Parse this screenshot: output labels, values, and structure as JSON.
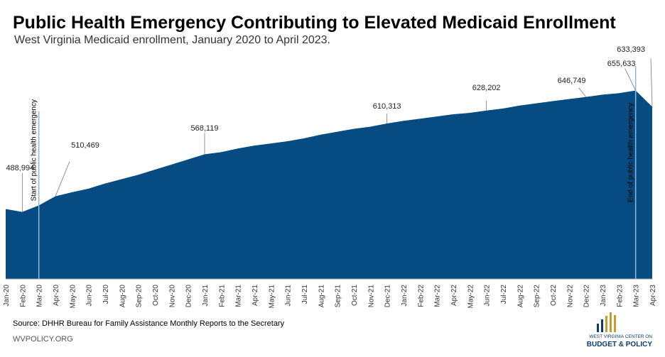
{
  "chart_data": {
    "type": "area",
    "title": "Public Health Emergency Contributing to Elevated Medicaid Enrollment",
    "subtitle": "West Virginia Medicaid enrollment, January 2020 to April 2023.",
    "categories": [
      "Jan-20",
      "Feb-20",
      "Mar-20",
      "Apr-20",
      "May-20",
      "Jun-20",
      "Jul-20",
      "Aug-20",
      "Sep-20",
      "Oct-20",
      "Nov-20",
      "Dec-20",
      "Jan-21",
      "Feb-21",
      "Mar-21",
      "Apr-21",
      "May-21",
      "Jun-21",
      "Jul-21",
      "Aug-21",
      "Sep-21",
      "Oct-21",
      "Nov-21",
      "Dec-21",
      "Jan-22",
      "Feb-22",
      "Mar-22",
      "Apr-22",
      "May-22",
      "Jun-22",
      "Jul-22",
      "Aug-22",
      "Sep-22",
      "Oct-22",
      "Nov-22",
      "Dec-22",
      "Jan-23",
      "Feb-23",
      "Mar-23",
      "Apr-23"
    ],
    "values": [
      493000,
      488994,
      498000,
      510469,
      516000,
      521000,
      528000,
      534000,
      540000,
      547000,
      554000,
      561000,
      568119,
      571000,
      576000,
      580000,
      583000,
      586000,
      590000,
      595000,
      599000,
      603000,
      606000,
      610313,
      614000,
      617000,
      620000,
      623000,
      625000,
      628202,
      631000,
      635000,
      638000,
      641000,
      644000,
      646749,
      650000,
      652000,
      655633,
      633393
    ],
    "value_labels": [
      null,
      "488,994",
      null,
      "510,469",
      null,
      null,
      null,
      null,
      null,
      null,
      null,
      null,
      "568,119",
      null,
      null,
      null,
      null,
      null,
      null,
      null,
      null,
      null,
      null,
      "610,313",
      null,
      null,
      null,
      null,
      null,
      "628,202",
      null,
      null,
      null,
      null,
      null,
      "646,749",
      null,
      null,
      "655,633",
      "633,393"
    ],
    "color": "#064b82",
    "ylim": [
      397000,
      700000
    ],
    "annotations": [
      {
        "text": "Start of public health emergency",
        "category": "Mar-20"
      },
      {
        "text": "End of public health emergency",
        "category": "Mar-23"
      }
    ],
    "source": "Source: DHHR Bureau for Family Assistance Monthly Reports to the Secretary",
    "footer": "WVPOLICY.ORG",
    "logo": [
      "WEST VIRGINIA CENTER ON",
      "BUDGET & POLICY"
    ]
  }
}
